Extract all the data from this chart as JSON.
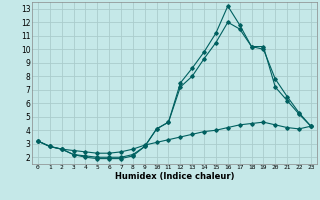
{
  "xlabel": "Humidex (Indice chaleur)",
  "background_color": "#c5e8e8",
  "grid_color": "#aacccc",
  "line_color": "#006060",
  "xlim": [
    -0.5,
    23.5
  ],
  "ylim": [
    1.5,
    13.5
  ],
  "xticks": [
    0,
    1,
    2,
    3,
    4,
    5,
    6,
    7,
    8,
    9,
    10,
    11,
    12,
    13,
    14,
    15,
    16,
    17,
    18,
    19,
    20,
    21,
    22,
    23
  ],
  "yticks": [
    2,
    3,
    4,
    5,
    6,
    7,
    8,
    9,
    10,
    11,
    12,
    13
  ],
  "line1_x": [
    0,
    1,
    2,
    3,
    4,
    5,
    6,
    7,
    8,
    9,
    10,
    11,
    12,
    13,
    14,
    15,
    16,
    17,
    18,
    19,
    20,
    21,
    22,
    23
  ],
  "line1_y": [
    3.2,
    2.8,
    2.6,
    2.2,
    2.0,
    1.9,
    1.9,
    1.9,
    2.1,
    2.8,
    4.1,
    4.6,
    7.5,
    8.6,
    9.8,
    11.2,
    13.2,
    11.8,
    10.2,
    10.0,
    7.8,
    6.5,
    5.3,
    4.3
  ],
  "line2_x": [
    0,
    1,
    2,
    3,
    4,
    5,
    6,
    7,
    8,
    9,
    10,
    11,
    12,
    13,
    14,
    15,
    16,
    17,
    18,
    19,
    20,
    21,
    22,
    23
  ],
  "line2_y": [
    3.2,
    2.8,
    2.6,
    2.2,
    2.1,
    2.0,
    2.0,
    2.0,
    2.2,
    2.8,
    4.1,
    4.6,
    7.2,
    8.0,
    9.3,
    10.5,
    12.0,
    11.5,
    10.2,
    10.2,
    7.2,
    6.2,
    5.2,
    4.3
  ],
  "line3_x": [
    0,
    1,
    2,
    3,
    4,
    5,
    6,
    7,
    8,
    9,
    10,
    11,
    12,
    13,
    14,
    15,
    16,
    17,
    18,
    19,
    20,
    21,
    22,
    23
  ],
  "line3_y": [
    3.2,
    2.8,
    2.6,
    2.5,
    2.4,
    2.3,
    2.3,
    2.4,
    2.6,
    2.9,
    3.1,
    3.3,
    3.5,
    3.7,
    3.9,
    4.0,
    4.2,
    4.4,
    4.5,
    4.6,
    4.4,
    4.2,
    4.1,
    4.3
  ]
}
